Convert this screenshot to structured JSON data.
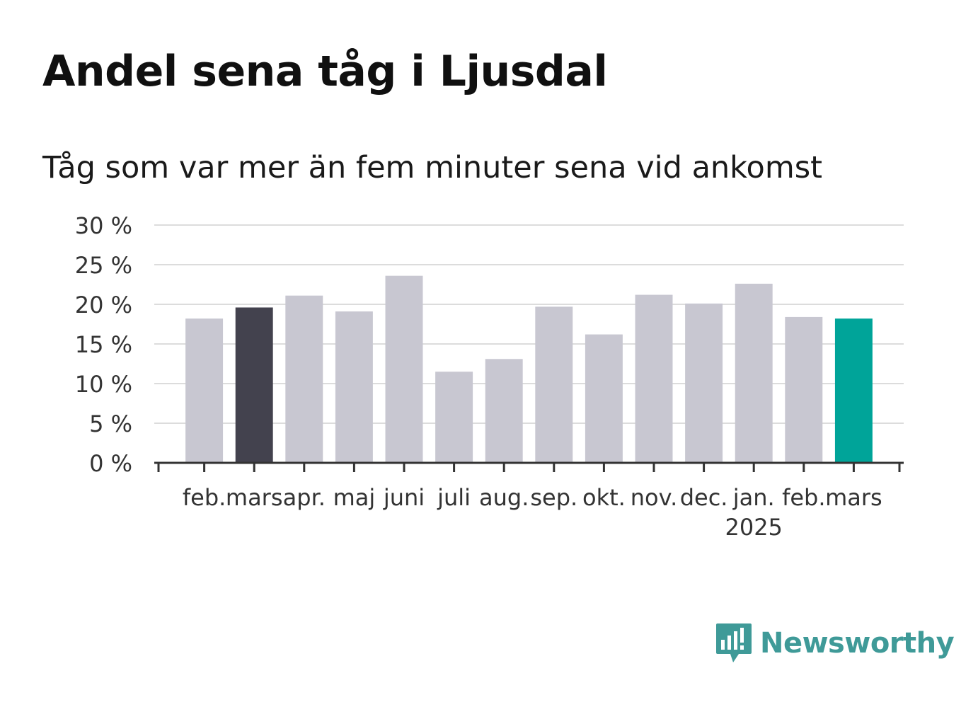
{
  "title": "Andel sena tåg i Ljusdal",
  "subtitle": "Tåg som var mer än fem minuter sena vid ankomst",
  "brand": {
    "name": "Newsworthy",
    "icon": "newsworthy-logo-icon",
    "color": "#3f9a98"
  },
  "chart_data": {
    "type": "bar",
    "categories": [
      "feb.",
      "mars",
      "apr.",
      "maj",
      "juni",
      "juli",
      "aug.",
      "sep.",
      "okt.",
      "nov.",
      "dec.",
      "jan.",
      "feb.",
      "mars"
    ],
    "year_label": {
      "category_index": 11,
      "text": "2025"
    },
    "values": [
      18.2,
      19.6,
      21.1,
      19.1,
      23.6,
      11.5,
      13.1,
      19.7,
      16.2,
      21.2,
      20.1,
      22.6,
      18.4,
      18.2
    ],
    "highlight": {
      "1": "#43424e",
      "13": "#00a499"
    },
    "default_color": "#c8c7d1",
    "ylim": [
      0,
      30
    ],
    "yticks": [
      0,
      5,
      10,
      15,
      20,
      25,
      30
    ],
    "ytick_labels": [
      "0 %",
      "5 %",
      "10 %",
      "15 %",
      "20 %",
      "25 %",
      "30 %"
    ],
    "grid": true
  }
}
